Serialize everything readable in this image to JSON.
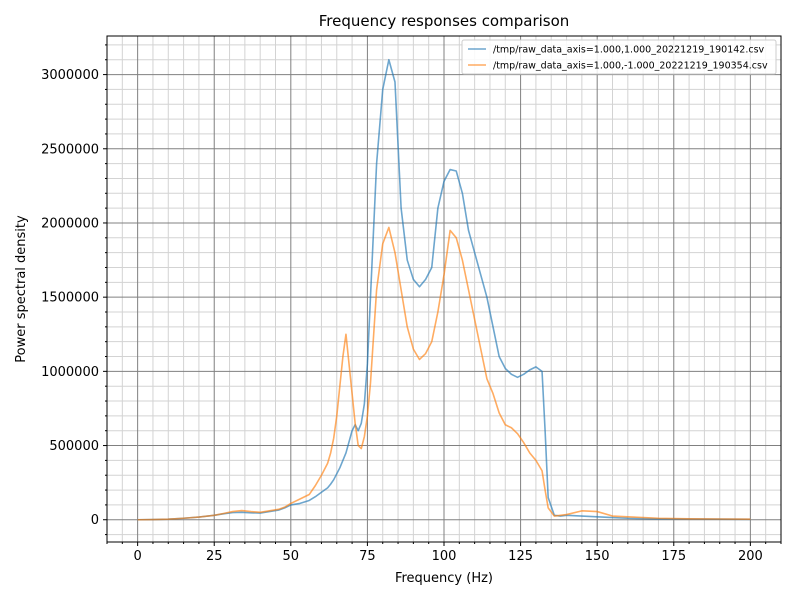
{
  "chart_data": {
    "type": "line",
    "title": "Frequency responses comparison",
    "xlabel": "Frequency (Hz)",
    "ylabel": "Power spectral density",
    "xlim": [
      -10,
      210
    ],
    "ylim": [
      -150000,
      3260000
    ],
    "x_ticks": [
      0,
      25,
      50,
      75,
      100,
      125,
      150,
      175,
      200
    ],
    "x_tick_labels": [
      "0",
      "25",
      "50",
      "75",
      "100",
      "125",
      "150",
      "175",
      "200"
    ],
    "y_ticks": [
      0,
      500000,
      1000000,
      1500000,
      2000000,
      2500000,
      3000000
    ],
    "y_tick_labels": [
      "0",
      "500000",
      "1000000",
      "1500000",
      "2000000",
      "2500000",
      "3000000"
    ],
    "grid": {
      "major": true,
      "minor": true,
      "major_color": "#808080",
      "minor_color": "#d3d3d3"
    },
    "legend_position": "top-right",
    "series": [
      {
        "name": "/tmp/raw_data_axis=1.000,1.000_20221219_190142.csv",
        "color": "#1f77b4",
        "x": [
          0,
          5,
          10,
          15,
          20,
          25,
          28,
          31,
          34,
          37,
          40,
          43,
          46,
          48,
          50,
          53,
          56,
          58,
          60,
          62,
          63,
          64,
          66,
          68,
          70,
          71,
          72,
          73,
          74,
          75,
          76,
          78,
          80,
          82,
          84,
          86,
          88,
          90,
          92,
          94,
          96,
          98,
          100,
          102,
          104,
          106,
          108,
          110,
          112,
          114,
          116,
          118,
          120,
          122,
          124,
          126,
          128,
          130,
          132,
          133,
          134,
          136,
          138,
          140,
          145,
          150,
          155,
          160,
          165,
          170,
          180,
          190,
          200
        ],
        "y": [
          0,
          1000,
          4000,
          10000,
          18000,
          30000,
          40000,
          48000,
          50000,
          47000,
          45000,
          55000,
          65000,
          80000,
          100000,
          110000,
          130000,
          155000,
          185000,
          215000,
          240000,
          270000,
          350000,
          450000,
          600000,
          640000,
          600000,
          650000,
          780000,
          1050000,
          1500000,
          2400000,
          2900000,
          3100000,
          2950000,
          2100000,
          1750000,
          1620000,
          1570000,
          1620000,
          1700000,
          2100000,
          2280000,
          2360000,
          2350000,
          2200000,
          1950000,
          1800000,
          1650000,
          1500000,
          1300000,
          1100000,
          1020000,
          980000,
          960000,
          980000,
          1010000,
          1030000,
          1000000,
          600000,
          150000,
          30000,
          25000,
          30000,
          25000,
          20000,
          15000,
          10000,
          8000,
          6000,
          5000,
          4000,
          3000
        ]
      },
      {
        "name": "/tmp/raw_data_axis=1.000,-1.000_20221219_190354.csv",
        "color": "#ff7f0e",
        "x": [
          0,
          5,
          10,
          15,
          20,
          25,
          28,
          31,
          34,
          37,
          40,
          43,
          46,
          48,
          50,
          53,
          56,
          58,
          60,
          62,
          63,
          64,
          65,
          66,
          67,
          68,
          69,
          70,
          71,
          72,
          73,
          74,
          75,
          76,
          78,
          80,
          82,
          84,
          86,
          88,
          90,
          92,
          94,
          96,
          98,
          100,
          102,
          104,
          106,
          108,
          110,
          112,
          114,
          116,
          118,
          120,
          122,
          124,
          126,
          128,
          130,
          132,
          133,
          134,
          136,
          138,
          140,
          145,
          150,
          155,
          160,
          165,
          170,
          180,
          190,
          200
        ],
        "y": [
          0,
          1000,
          4000,
          10000,
          18000,
          30000,
          42000,
          55000,
          62000,
          55000,
          50000,
          60000,
          70000,
          85000,
          110000,
          140000,
          170000,
          230000,
          300000,
          380000,
          450000,
          550000,
          700000,
          900000,
          1100000,
          1250000,
          1050000,
          850000,
          650000,
          500000,
          480000,
          560000,
          700000,
          920000,
          1550000,
          1860000,
          1970000,
          1800000,
          1550000,
          1300000,
          1150000,
          1080000,
          1120000,
          1200000,
          1400000,
          1650000,
          1950000,
          1900000,
          1750000,
          1550000,
          1350000,
          1150000,
          950000,
          850000,
          720000,
          640000,
          620000,
          580000,
          520000,
          450000,
          400000,
          330000,
          200000,
          80000,
          25000,
          30000,
          35000,
          60000,
          55000,
          25000,
          20000,
          15000,
          10000,
          6000,
          5000,
          4000
        ]
      }
    ]
  }
}
